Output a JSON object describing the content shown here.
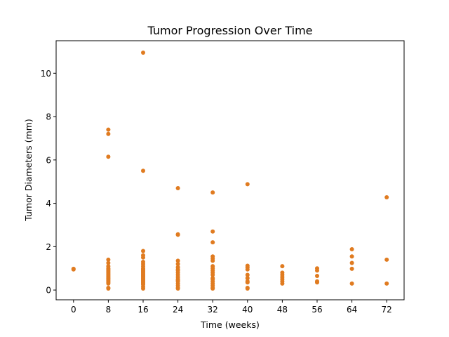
{
  "chart_data": {
    "type": "scatter",
    "title": "Tumor Progression Over Time",
    "xlabel": "Time (weeks)",
    "ylabel": "Tumor Diameters (mm)",
    "xlim": [
      -4,
      76
    ],
    "ylim": [
      -0.45,
      11.5
    ],
    "xticks": [
      0,
      8,
      16,
      24,
      32,
      40,
      48,
      56,
      64,
      72
    ],
    "yticks": [
      0,
      2,
      4,
      6,
      8,
      10
    ],
    "grid": false,
    "color": "#e07b20",
    "series": [
      {
        "points": [
          [
            0,
            0.98
          ],
          [
            0,
            0.95
          ],
          [
            8,
            7.4
          ],
          [
            8,
            7.2
          ],
          [
            8,
            6.15
          ],
          [
            8,
            1.4
          ],
          [
            8,
            1.25
          ],
          [
            8,
            1.1
          ],
          [
            8,
            1.0
          ],
          [
            8,
            0.95
          ],
          [
            8,
            0.9
          ],
          [
            8,
            0.85
          ],
          [
            8,
            0.8
          ],
          [
            8,
            0.75
          ],
          [
            8,
            0.7
          ],
          [
            8,
            0.65
          ],
          [
            8,
            0.6
          ],
          [
            8,
            0.55
          ],
          [
            8,
            0.5
          ],
          [
            8,
            0.45
          ],
          [
            8,
            0.4
          ],
          [
            8,
            0.35
          ],
          [
            8,
            0.3
          ],
          [
            8,
            0.1
          ],
          [
            8,
            0.07
          ],
          [
            16,
            10.95
          ],
          [
            16,
            5.5
          ],
          [
            16,
            1.8
          ],
          [
            16,
            1.6
          ],
          [
            16,
            1.5
          ],
          [
            16,
            1.3
          ],
          [
            16,
            1.2
          ],
          [
            16,
            1.1
          ],
          [
            16,
            1.0
          ],
          [
            16,
            0.95
          ],
          [
            16,
            0.9
          ],
          [
            16,
            0.85
          ],
          [
            16,
            0.8
          ],
          [
            16,
            0.75
          ],
          [
            16,
            0.7
          ],
          [
            16,
            0.65
          ],
          [
            16,
            0.6
          ],
          [
            16,
            0.55
          ],
          [
            16,
            0.5
          ],
          [
            16,
            0.45
          ],
          [
            16,
            0.4
          ],
          [
            16,
            0.35
          ],
          [
            16,
            0.3
          ],
          [
            16,
            0.25
          ],
          [
            16,
            0.15
          ],
          [
            16,
            0.07
          ],
          [
            24,
            4.7
          ],
          [
            24,
            2.57
          ],
          [
            24,
            2.55
          ],
          [
            24,
            1.35
          ],
          [
            24,
            1.2
          ],
          [
            24,
            1.05
          ],
          [
            24,
            0.95
          ],
          [
            24,
            0.9
          ],
          [
            24,
            0.8
          ],
          [
            24,
            0.7
          ],
          [
            24,
            0.6
          ],
          [
            24,
            0.5
          ],
          [
            24,
            0.45
          ],
          [
            24,
            0.4
          ],
          [
            24,
            0.3
          ],
          [
            24,
            0.2
          ],
          [
            24,
            0.1
          ],
          [
            24,
            0.07
          ],
          [
            32,
            4.5
          ],
          [
            32,
            2.7
          ],
          [
            32,
            2.2
          ],
          [
            32,
            1.55
          ],
          [
            32,
            1.45
          ],
          [
            32,
            1.35
          ],
          [
            32,
            1.1
          ],
          [
            32,
            1.0
          ],
          [
            32,
            0.9
          ],
          [
            32,
            0.8
          ],
          [
            32,
            0.7
          ],
          [
            32,
            0.55
          ],
          [
            32,
            0.5
          ],
          [
            32,
            0.4
          ],
          [
            32,
            0.3
          ],
          [
            32,
            0.2
          ],
          [
            32,
            0.1
          ],
          [
            32,
            0.07
          ],
          [
            40,
            4.88
          ],
          [
            40,
            1.12
          ],
          [
            40,
            1.05
          ],
          [
            40,
            0.95
          ],
          [
            40,
            0.7
          ],
          [
            40,
            0.55
          ],
          [
            40,
            0.4
          ],
          [
            40,
            0.35
          ],
          [
            40,
            0.1
          ],
          [
            40,
            0.07
          ],
          [
            48,
            1.1
          ],
          [
            48,
            0.8
          ],
          [
            48,
            0.7
          ],
          [
            48,
            0.6
          ],
          [
            48,
            0.5
          ],
          [
            48,
            0.4
          ],
          [
            48,
            0.3
          ],
          [
            56,
            1.0
          ],
          [
            56,
            0.9
          ],
          [
            56,
            0.65
          ],
          [
            56,
            0.4
          ],
          [
            56,
            0.35
          ],
          [
            64,
            1.88
          ],
          [
            64,
            1.55
          ],
          [
            64,
            1.25
          ],
          [
            64,
            0.98
          ],
          [
            64,
            0.3
          ],
          [
            72,
            4.28
          ],
          [
            72,
            1.4
          ],
          [
            72,
            0.3
          ]
        ]
      }
    ]
  }
}
